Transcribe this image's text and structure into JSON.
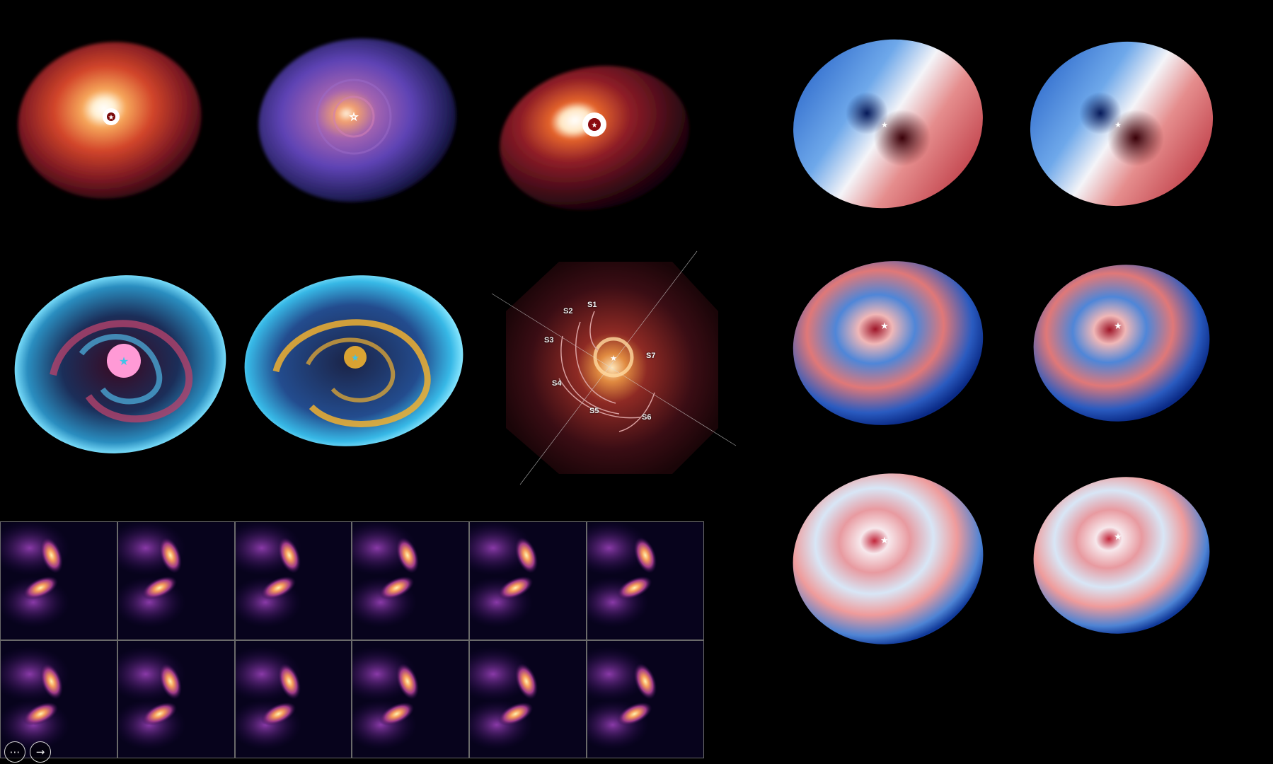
{
  "spiral_labels": [
    {
      "id": "s1",
      "text": "S1"
    },
    {
      "id": "s2",
      "text": "S2"
    },
    {
      "id": "s3",
      "text": "S3"
    },
    {
      "id": "s4",
      "text": "S4"
    },
    {
      "id": "s5",
      "text": "S5"
    },
    {
      "id": "s6",
      "text": "S6"
    },
    {
      "id": "s7",
      "text": "S7"
    }
  ],
  "controls": {
    "more_icon": "more-options-icon",
    "next_icon": "next-arrow-icon",
    "more_glyph": "⋯",
    "next_glyph": "→"
  },
  "colors": {
    "background": "#000000",
    "inferno_mid": "#c0392b",
    "magma_mid": "#6a4cc0",
    "redshift": "#c83a44",
    "blueshift": "#2e6fd0",
    "residual_cyan": "#3fc5e8",
    "residual_gold": "#f0b030",
    "residual_pink": "#ff9ad6",
    "channel_bright": "#ffd27a"
  },
  "star_markers": 13
}
